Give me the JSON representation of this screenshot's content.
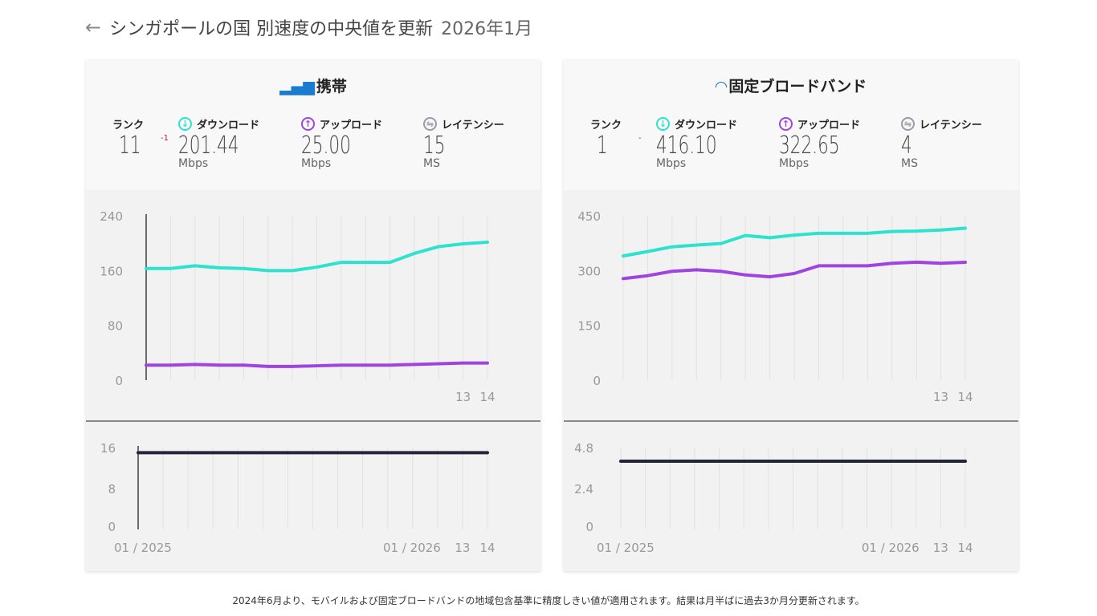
{
  "header": {
    "back_icon": "arrow-left-icon",
    "title": "シンガポールの国 別速度の中央値を更新",
    "date": "2026年1月"
  },
  "colors": {
    "download": "#2de2cf",
    "upload": "#a044e0",
    "latency": "#23253a",
    "icon_blue": "#1a7bd1"
  },
  "cards": [
    {
      "title": "携帯",
      "icon": "signal-bars-icon",
      "rank_label": "ランク",
      "rank": "11",
      "rank_change": "-1",
      "download_label": "ダウンロード",
      "download": "201.44",
      "download_unit": "Mbps",
      "upload_label": "アップロード",
      "upload": "25.00",
      "upload_unit": "Mbps",
      "latency_label": "レイテンシー",
      "latency": "15",
      "latency_unit": "MS"
    },
    {
      "title": "固定ブロードバンド",
      "icon": "wifi-icon",
      "rank_label": "ランク",
      "rank": "1",
      "rank_change": "-",
      "download_label": "ダウンロード",
      "download": "416.10",
      "download_unit": "Mbps",
      "upload_label": "アップロード",
      "upload": "322.65",
      "upload_unit": "Mbps",
      "latency_label": "レイテンシー",
      "latency": "4",
      "latency_unit": "MS"
    }
  ],
  "chart_data": [
    {
      "type": "line",
      "ylim": [
        0,
        240
      ],
      "yticks": [
        "0",
        "80",
        "160",
        "240"
      ],
      "xtick_labels": [
        "13",
        "14"
      ],
      "series": [
        {
          "key": "download",
          "values": [
            163,
            163,
            167,
            164,
            163,
            160,
            160,
            165,
            172,
            172,
            172,
            185,
            195,
            199,
            201.44
          ]
        },
        {
          "key": "upload",
          "values": [
            22,
            22,
            23,
            22,
            22,
            20,
            20,
            21,
            22,
            22,
            22,
            23,
            24,
            25,
            25
          ]
        }
      ]
    },
    {
      "type": "line",
      "ylim": [
        0,
        16
      ],
      "yticks": [
        "0",
        "8",
        "16"
      ],
      "xtick_labels": [
        "01 / 2025",
        "01 / 2026",
        "13",
        "14"
      ],
      "series": [
        {
          "key": "latency",
          "values": [
            15,
            15,
            15,
            15,
            15,
            15,
            15,
            15,
            15,
            15,
            15,
            15,
            15,
            15,
            15
          ]
        }
      ]
    },
    {
      "type": "line",
      "ylim": [
        0,
        450
      ],
      "yticks": [
        "0",
        "150",
        "300",
        "450"
      ],
      "xtick_labels": [
        "13",
        "14"
      ],
      "series": [
        {
          "key": "download",
          "values": [
            340,
            352,
            365,
            370,
            374,
            396,
            390,
            397,
            402,
            402,
            402,
            407,
            408,
            411,
            416.1
          ]
        },
        {
          "key": "upload",
          "values": [
            278,
            286,
            298,
            302,
            298,
            288,
            283,
            292,
            313,
            313,
            313,
            320,
            323,
            320,
            322.65
          ]
        }
      ]
    },
    {
      "type": "line",
      "ylim": [
        0,
        4.8
      ],
      "yticks": [
        "0",
        "2.4",
        "4.8"
      ],
      "xtick_labels": [
        "01 / 2025",
        "01 / 2026",
        "13",
        "14"
      ],
      "series": [
        {
          "key": "latency",
          "values": [
            4,
            4,
            4,
            4,
            4,
            4,
            4,
            4,
            4,
            4,
            4,
            4,
            4,
            4,
            4
          ]
        }
      ]
    }
  ],
  "footer": "2024年6月より、モバイルおよび固定ブロードバンドの地域包含基準に精度しきい値が適用されます。結果は月半ばに過去3か月分更新されます。"
}
